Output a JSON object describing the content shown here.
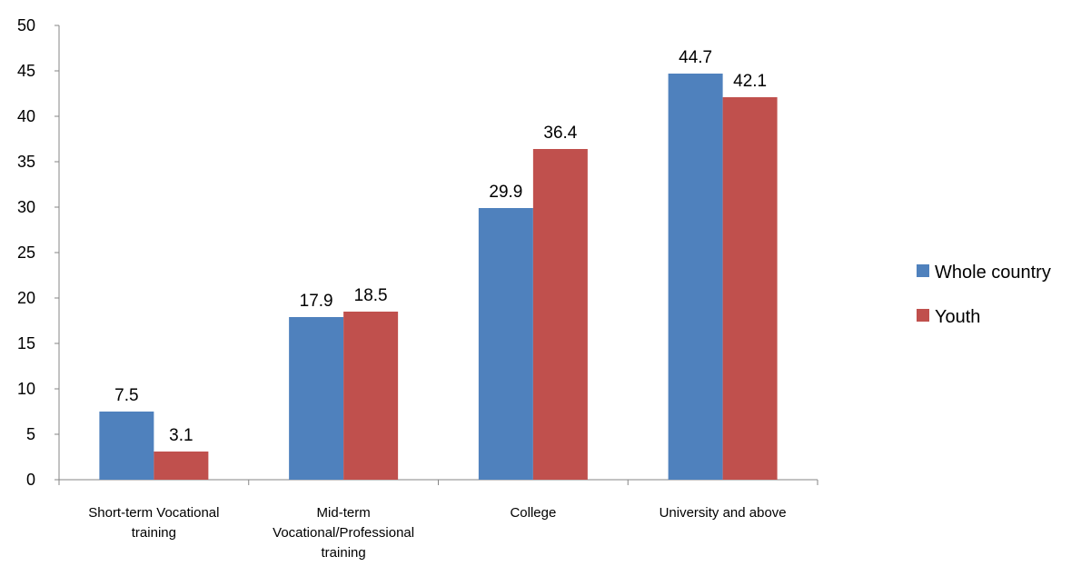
{
  "chart_data": {
    "type": "bar",
    "title": "",
    "xlabel": "",
    "ylabel": "",
    "categories": [
      [
        "Short-term Vocational",
        "training"
      ],
      [
        "Mid-term",
        "Vocational/Professional",
        "training"
      ],
      [
        "College"
      ],
      [
        "University and above"
      ]
    ],
    "series": [
      {
        "name": "Whole country",
        "color": "#4F81BD",
        "values": [
          7.5,
          17.9,
          29.9,
          44.7
        ]
      },
      {
        "name": "Youth",
        "color": "#C0504D",
        "values": [
          3.1,
          18.5,
          36.4,
          42.1
        ]
      }
    ],
    "ylim": [
      0,
      50
    ],
    "yticks": [
      0,
      5,
      10,
      15,
      20,
      25,
      30,
      35,
      40,
      45,
      50
    ],
    "grid": false,
    "legend_position": "right"
  }
}
